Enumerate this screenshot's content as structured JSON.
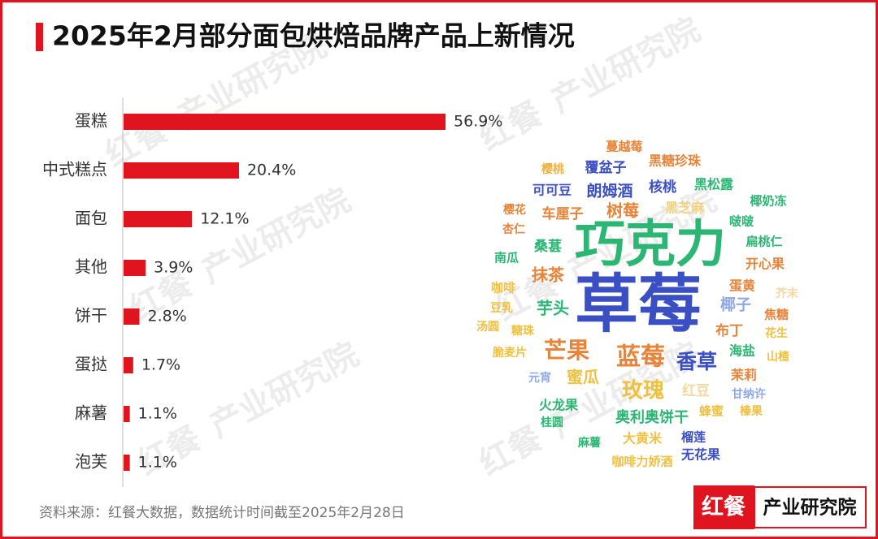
{
  "chart_data": {
    "type": "bar",
    "title": "2025年2月部分面包烘焙品牌产品上新情况",
    "categories": [
      "蛋糕",
      "中式糕点",
      "面包",
      "其他",
      "饼干",
      "蛋挞",
      "麻薯",
      "泡芙"
    ],
    "values": [
      56.9,
      20.4,
      12.1,
      3.9,
      2.8,
      1.7,
      1.1,
      1.1
    ],
    "value_labels": [
      "56.9%",
      "20.4%",
      "12.1%",
      "3.9%",
      "2.8%",
      "1.7%",
      "1.1%",
      "1.1%"
    ],
    "color": "#e0141e"
  },
  "word_cloud": {
    "words": [
      {
        "text": "蔓越莓",
        "color": "#e8843a"
      },
      {
        "text": "黑糖珍珠",
        "color": "#e8843a"
      },
      {
        "text": "樱桃",
        "color": "#f0b040"
      },
      {
        "text": "覆盆子",
        "color": "#3a4fc4"
      },
      {
        "text": "可可豆",
        "color": "#3a4fc4"
      },
      {
        "text": "朗姆酒",
        "color": "#3a4fc4"
      },
      {
        "text": "核桃",
        "color": "#3a4fc4"
      },
      {
        "text": "黑松露",
        "color": "#2bb673"
      },
      {
        "text": "椰奶冻",
        "color": "#2bb673"
      },
      {
        "text": "樱花",
        "color": "#e8843a"
      },
      {
        "text": "车厘子",
        "color": "#e8843a"
      },
      {
        "text": "树莓",
        "color": "#e8843a"
      },
      {
        "text": "黑芝麻",
        "color": "#f3d27e"
      },
      {
        "text": "啵啵",
        "color": "#2bb673"
      },
      {
        "text": "杏仁",
        "color": "#e8843a"
      },
      {
        "text": "巧克力",
        "color": "#2bb673"
      },
      {
        "text": "扁桃仁",
        "color": "#2bb673"
      },
      {
        "text": "桑葚",
        "color": "#2bb673"
      },
      {
        "text": "南瓜",
        "color": "#2bb673"
      },
      {
        "text": "开心果",
        "color": "#e8843a"
      },
      {
        "text": "抹茶",
        "color": "#e8843a"
      },
      {
        "text": "草莓",
        "color": "#3a4fc4"
      },
      {
        "text": "蛋黄",
        "color": "#e8843a"
      },
      {
        "text": "咖啡",
        "color": "#f0c040"
      },
      {
        "text": "芥末",
        "color": "#f3d9a0"
      },
      {
        "text": "豆乳",
        "color": "#f0c040"
      },
      {
        "text": "芋头",
        "color": "#2bb673"
      },
      {
        "text": "椰子",
        "color": "#8fa8e8"
      },
      {
        "text": "焦糖",
        "color": "#e8843a"
      },
      {
        "text": "汤圆",
        "color": "#f0c040"
      },
      {
        "text": "糖珠",
        "color": "#f0c040"
      },
      {
        "text": "布丁",
        "color": "#e8843a"
      },
      {
        "text": "花生",
        "color": "#f0c040"
      },
      {
        "text": "脆麦片",
        "color": "#f0c040"
      },
      {
        "text": "芒果",
        "color": "#e8843a"
      },
      {
        "text": "海盐",
        "color": "#2bb673"
      },
      {
        "text": "山楂",
        "color": "#f0c040"
      },
      {
        "text": "蓝莓",
        "color": "#e8843a"
      },
      {
        "text": "香草",
        "color": "#3a4fc4"
      },
      {
        "text": "元宵",
        "color": "#8fa8e8"
      },
      {
        "text": "蜜瓜",
        "color": "#f0c040"
      },
      {
        "text": "茉莉",
        "color": "#e8843a"
      },
      {
        "text": "玫瑰",
        "color": "#f0c040"
      },
      {
        "text": "红豆",
        "color": "#f3d9a0"
      },
      {
        "text": "甘纳许",
        "color": "#8fa8e8"
      },
      {
        "text": "火龙果",
        "color": "#2bb673"
      },
      {
        "text": "蜂蜜",
        "color": "#f0c040"
      },
      {
        "text": "榛果",
        "color": "#f0c040"
      },
      {
        "text": "桂圆",
        "color": "#2bb673"
      },
      {
        "text": "奥利奥饼干",
        "color": "#2bb673"
      },
      {
        "text": "大黄米",
        "color": "#f0c040"
      },
      {
        "text": "榴莲",
        "color": "#3a4fc4"
      },
      {
        "text": "麻薯",
        "color": "#2bb673"
      },
      {
        "text": "无花果",
        "color": "#3a4fc4"
      },
      {
        "text": "咖啡力娇酒",
        "color": "#f0c040"
      }
    ]
  },
  "source": "资料来源：红餐大数据，数据统计时间截至2025年2月28日",
  "logo": {
    "brand": "红餐",
    "name": "产业研究院"
  }
}
